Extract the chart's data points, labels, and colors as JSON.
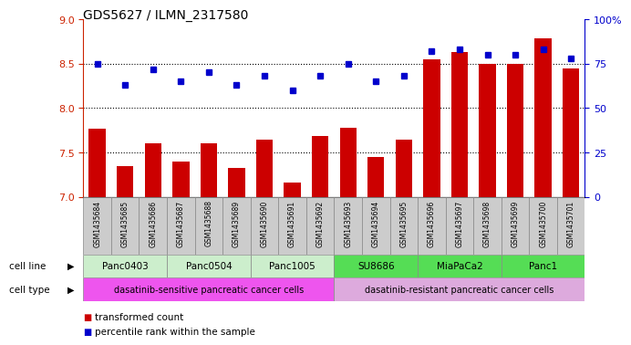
{
  "title": "GDS5627 / ILMN_2317580",
  "samples": [
    "GSM1435684",
    "GSM1435685",
    "GSM1435686",
    "GSM1435687",
    "GSM1435688",
    "GSM1435689",
    "GSM1435690",
    "GSM1435691",
    "GSM1435692",
    "GSM1435693",
    "GSM1435694",
    "GSM1435695",
    "GSM1435696",
    "GSM1435697",
    "GSM1435698",
    "GSM1435699",
    "GSM1435700",
    "GSM1435701"
  ],
  "transformed_count": [
    7.77,
    7.35,
    7.6,
    7.4,
    7.6,
    7.33,
    7.64,
    7.16,
    7.68,
    7.78,
    7.45,
    7.64,
    8.55,
    8.63,
    8.5,
    8.5,
    8.78,
    8.45
  ],
  "percentile_rank": [
    75,
    63,
    72,
    65,
    70,
    63,
    68,
    60,
    68,
    75,
    65,
    68,
    82,
    83,
    80,
    80,
    83,
    78
  ],
  "cell_lines": [
    {
      "name": "Panc0403",
      "start": 0,
      "end": 2,
      "color": "#cceecc"
    },
    {
      "name": "Panc0504",
      "start": 3,
      "end": 5,
      "color": "#cceecc"
    },
    {
      "name": "Panc1005",
      "start": 6,
      "end": 8,
      "color": "#cceecc"
    },
    {
      "name": "SU8686",
      "start": 9,
      "end": 11,
      "color": "#55dd55"
    },
    {
      "name": "MiaPaCa2",
      "start": 12,
      "end": 14,
      "color": "#55dd55"
    },
    {
      "name": "Panc1",
      "start": 15,
      "end": 17,
      "color": "#55dd55"
    }
  ],
  "cell_types": [
    {
      "name": "dasatinib-sensitive pancreatic cancer cells",
      "start": 0,
      "end": 8,
      "color": "#ee55ee"
    },
    {
      "name": "dasatinib-resistant pancreatic cancer cells",
      "start": 9,
      "end": 17,
      "color": "#ddaadd"
    }
  ],
  "ylim_left": [
    7.0,
    9.0
  ],
  "ylim_right": [
    0,
    100
  ],
  "yticks_left": [
    7.0,
    7.5,
    8.0,
    8.5,
    9.0
  ],
  "yticks_right": [
    0,
    25,
    50,
    75,
    100
  ],
  "bar_color": "#cc0000",
  "dot_color": "#0000cc",
  "bar_bottom": 7.0,
  "legend_bar_label": "transformed count",
  "legend_dot_label": "percentile rank within the sample",
  "cell_line_label": "cell line",
  "cell_type_label": "cell type",
  "sample_bg_color": "#cccccc"
}
